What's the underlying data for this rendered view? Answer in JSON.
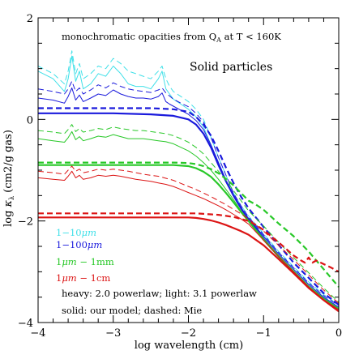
{
  "chart_data": {
    "type": "line",
    "title": "monochromatic opacities from Q_A at T < 160K",
    "subtitle": "Solid particles",
    "xlabel": "log wavelength (cm)",
    "ylabel": "log κ_λ (cm2/g gas)",
    "xlim": [
      -4,
      0
    ],
    "ylim": [
      -4,
      2
    ],
    "x_ticks": [
      -4,
      -3,
      -2,
      -1,
      0
    ],
    "x_tick_labels": [
      "−4",
      "−3",
      "−2",
      "−1",
      "0"
    ],
    "y_ticks": [
      -4,
      -2,
      0,
      2
    ],
    "y_tick_labels": [
      "−4",
      "−2",
      "0",
      "2"
    ],
    "grid": false,
    "annotations": {
      "title_main": "monochromatic opacities from Q",
      "title_sub": "A",
      "title_tail": " at T < 160K",
      "panel_label": "Solid particles",
      "note_powerlaw": "heavy: 2.0 powerlaw; light: 3.1 powerlaw",
      "note_model": "solid: our model; dashed: Mie"
    },
    "legend": [
      {
        "label_pre": "1−10",
        "label_unit": "μm",
        "label_post": "",
        "color": "#40e0e8"
      },
      {
        "label_pre": "1−100",
        "label_unit": "μm",
        "label_post": "",
        "color": "#1a1adc"
      },
      {
        "label_pre": "1",
        "label_unit": "μm",
        "label_post": " − 1mm",
        "color": "#28c828"
      },
      {
        "label_pre": "1",
        "label_unit": "μm",
        "label_post": " − 1cm",
        "color": "#dc1414"
      }
    ],
    "series": [
      {
        "color": "#40e0e8",
        "width": 1.0,
        "dash": false,
        "x": [
          -4.0,
          -3.8,
          -3.65,
          -3.6,
          -3.55,
          -3.5,
          -3.45,
          -3.4,
          -3.3,
          -3.2,
          -3.1,
          -3.0,
          -2.9,
          -2.8,
          -2.7,
          -2.6,
          -2.5,
          -2.4,
          -2.35,
          -2.3,
          -2.25,
          -2.2,
          -2.1,
          -2.0,
          -1.9,
          -1.8,
          -1.7,
          -1.6,
          -1.5,
          -1.4,
          -1.3,
          -1.2,
          -1.0,
          -0.8,
          -0.6,
          -0.4,
          -0.2,
          0.0
        ],
        "y": [
          0.95,
          0.8,
          0.55,
          0.8,
          1.25,
          0.75,
          0.95,
          0.6,
          0.7,
          0.9,
          0.85,
          1.05,
          0.9,
          0.7,
          0.65,
          0.65,
          0.6,
          0.8,
          0.95,
          0.6,
          0.5,
          0.4,
          0.3,
          0.2,
          0.05,
          -0.15,
          -0.5,
          -0.85,
          -1.2,
          -1.5,
          -1.75,
          -1.95,
          -2.3,
          -2.65,
          -2.95,
          -3.25,
          -3.5,
          -3.7
        ]
      },
      {
        "color": "#40e0e8",
        "width": 1.0,
        "dash": true,
        "x": [
          -4.0,
          -3.8,
          -3.65,
          -3.6,
          -3.55,
          -3.5,
          -3.45,
          -3.4,
          -3.3,
          -3.2,
          -3.1,
          -3.0,
          -2.9,
          -2.8,
          -2.7,
          -2.6,
          -2.5,
          -2.4,
          -2.35,
          -2.3,
          -2.25,
          -2.2,
          -2.1,
          -2.0,
          -1.9,
          -1.8,
          -1.7,
          -1.6,
          -1.5,
          -1.4,
          -1.3,
          -1.2,
          -1.0,
          -0.8,
          -0.6,
          -0.4,
          -0.2,
          0.0
        ],
        "y": [
          1.05,
          0.9,
          0.7,
          0.95,
          1.35,
          0.9,
          1.1,
          0.8,
          0.9,
          1.05,
          1.0,
          1.2,
          1.1,
          0.95,
          0.9,
          0.85,
          0.8,
          0.95,
          1.05,
          0.8,
          0.65,
          0.55,
          0.45,
          0.35,
          0.2,
          0.0,
          -0.35,
          -0.75,
          -1.1,
          -1.45,
          -1.7,
          -1.9,
          -2.25,
          -2.6,
          -2.9,
          -3.2,
          -3.45,
          -3.65
        ]
      },
      {
        "color": "#1a1adc",
        "width": 1.0,
        "dash": false,
        "x": [
          -4.0,
          -3.8,
          -3.65,
          -3.6,
          -3.55,
          -3.5,
          -3.45,
          -3.4,
          -3.3,
          -3.2,
          -3.1,
          -3.0,
          -2.9,
          -2.8,
          -2.7,
          -2.6,
          -2.5,
          -2.4,
          -2.35,
          -2.3,
          -2.25,
          -2.2,
          -2.1,
          -2.0,
          -1.9,
          -1.8,
          -1.7,
          -1.6,
          -1.5,
          -1.4,
          -1.3,
          -1.2,
          -1.0,
          -0.8,
          -0.6,
          -0.4,
          -0.2,
          0.0
        ],
        "y": [
          0.42,
          0.38,
          0.32,
          0.45,
          0.62,
          0.38,
          0.48,
          0.35,
          0.42,
          0.5,
          0.47,
          0.58,
          0.5,
          0.45,
          0.42,
          0.42,
          0.4,
          0.45,
          0.52,
          0.35,
          0.3,
          0.26,
          0.18,
          0.1,
          -0.02,
          -0.2,
          -0.5,
          -0.85,
          -1.2,
          -1.5,
          -1.75,
          -1.95,
          -2.3,
          -2.65,
          -2.95,
          -3.25,
          -3.5,
          -3.7
        ]
      },
      {
        "color": "#1a1adc",
        "width": 1.0,
        "dash": true,
        "x": [
          -4.0,
          -3.8,
          -3.65,
          -3.6,
          -3.55,
          -3.5,
          -3.45,
          -3.4,
          -3.3,
          -3.2,
          -3.1,
          -3.0,
          -2.9,
          -2.8,
          -2.7,
          -2.6,
          -2.5,
          -2.4,
          -2.35,
          -2.3,
          -2.25,
          -2.2,
          -2.1,
          -2.0,
          -1.9,
          -1.8,
          -1.7,
          -1.6,
          -1.5,
          -1.4,
          -1.3,
          -1.2,
          -1.0,
          -0.8,
          -0.6,
          -0.4,
          -0.2,
          0.0
        ],
        "y": [
          0.6,
          0.55,
          0.5,
          0.6,
          0.75,
          0.55,
          0.62,
          0.5,
          0.58,
          0.68,
          0.62,
          0.72,
          0.65,
          0.6,
          0.57,
          0.55,
          0.53,
          0.58,
          0.62,
          0.52,
          0.46,
          0.4,
          0.32,
          0.25,
          0.12,
          -0.05,
          -0.35,
          -0.75,
          -1.1,
          -1.45,
          -1.7,
          -1.92,
          -2.27,
          -2.62,
          -2.92,
          -3.22,
          -3.47,
          -3.67
        ]
      },
      {
        "color": "#1a1adc",
        "width": 2.2,
        "dash": false,
        "x": [
          -4.0,
          -3.5,
          -3.0,
          -2.5,
          -2.2,
          -2.0,
          -1.9,
          -1.8,
          -1.7,
          -1.6,
          -1.5,
          -1.4,
          -1.3,
          -1.2,
          -1.0,
          -0.8,
          -0.6,
          -0.4,
          -0.2,
          0.0
        ],
        "y": [
          0.12,
          0.12,
          0.12,
          0.1,
          0.07,
          0.0,
          -0.1,
          -0.28,
          -0.55,
          -0.9,
          -1.22,
          -1.5,
          -1.75,
          -1.97,
          -2.35,
          -2.7,
          -3.0,
          -3.3,
          -3.55,
          -3.75
        ]
      },
      {
        "color": "#1a1adc",
        "width": 2.2,
        "dash": true,
        "x": [
          -4.0,
          -3.5,
          -3.0,
          -2.5,
          -2.2,
          -2.0,
          -1.9,
          -1.8,
          -1.7,
          -1.6,
          -1.5,
          -1.4,
          -1.3,
          -1.2,
          -1.0,
          -0.8,
          -0.6,
          -0.4,
          -0.2,
          0.0
        ],
        "y": [
          0.22,
          0.22,
          0.22,
          0.22,
          0.2,
          0.15,
          0.05,
          -0.1,
          -0.32,
          -0.62,
          -0.95,
          -1.25,
          -1.52,
          -1.75,
          -2.12,
          -2.47,
          -2.82,
          -3.12,
          -3.42,
          -3.65
        ]
      },
      {
        "color": "#28c828",
        "width": 1.0,
        "dash": false,
        "x": [
          -4.0,
          -3.8,
          -3.65,
          -3.6,
          -3.55,
          -3.5,
          -3.45,
          -3.4,
          -3.3,
          -3.2,
          -3.1,
          -3.0,
          -2.9,
          -2.8,
          -2.7,
          -2.6,
          -2.5,
          -2.4,
          -2.3,
          -2.2,
          -2.1,
          -2.0,
          -1.9,
          -1.8,
          -1.7,
          -1.6,
          -1.5,
          -1.4,
          -1.3,
          -1.2,
          -1.0,
          -0.8,
          -0.6,
          -0.4,
          -0.2,
          0.0
        ],
        "y": [
          -0.38,
          -0.42,
          -0.45,
          -0.36,
          -0.24,
          -0.4,
          -0.34,
          -0.42,
          -0.38,
          -0.33,
          -0.35,
          -0.3,
          -0.34,
          -0.38,
          -0.38,
          -0.38,
          -0.4,
          -0.42,
          -0.44,
          -0.48,
          -0.55,
          -0.62,
          -0.72,
          -0.85,
          -1.0,
          -1.18,
          -1.38,
          -1.58,
          -1.8,
          -2.0,
          -2.35,
          -2.68,
          -2.98,
          -3.28,
          -3.52,
          -3.72
        ]
      },
      {
        "color": "#28c828",
        "width": 1.0,
        "dash": true,
        "x": [
          -4.0,
          -3.8,
          -3.65,
          -3.6,
          -3.55,
          -3.5,
          -3.45,
          -3.4,
          -3.3,
          -3.2,
          -3.1,
          -3.0,
          -2.9,
          -2.8,
          -2.7,
          -2.6,
          -2.5,
          -2.4,
          -2.3,
          -2.2,
          -2.1,
          -2.0,
          -1.9,
          -1.8,
          -1.7,
          -1.6,
          -1.5,
          -1.4,
          -1.3,
          -1.2,
          -1.0,
          -0.8,
          -0.6,
          -0.4,
          -0.2,
          0.0
        ],
        "y": [
          -0.22,
          -0.25,
          -0.28,
          -0.2,
          -0.1,
          -0.24,
          -0.18,
          -0.25,
          -0.22,
          -0.18,
          -0.2,
          -0.15,
          -0.18,
          -0.2,
          -0.22,
          -0.22,
          -0.24,
          -0.26,
          -0.28,
          -0.32,
          -0.38,
          -0.45,
          -0.55,
          -0.68,
          -0.85,
          -1.02,
          -1.2,
          -1.4,
          -1.6,
          -1.8,
          -2.1,
          -2.42,
          -2.72,
          -3.02,
          -3.32,
          -3.6
        ]
      },
      {
        "color": "#28c828",
        "width": 2.2,
        "dash": false,
        "x": [
          -4.0,
          -3.5,
          -3.0,
          -2.5,
          -2.2,
          -2.0,
          -1.9,
          -1.8,
          -1.7,
          -1.6,
          -1.5,
          -1.4,
          -1.3,
          -1.2,
          -1.0,
          -0.8,
          -0.6,
          -0.4,
          -0.2,
          0.0
        ],
        "y": [
          -0.9,
          -0.9,
          -0.9,
          -0.9,
          -0.9,
          -0.92,
          -0.96,
          -1.03,
          -1.13,
          -1.28,
          -1.45,
          -1.63,
          -1.82,
          -2.0,
          -2.37,
          -2.7,
          -3.0,
          -3.3,
          -3.55,
          -3.75
        ]
      },
      {
        "color": "#28c828",
        "width": 2.2,
        "dash": true,
        "x": [
          -4.0,
          -3.5,
          -3.0,
          -2.5,
          -2.2,
          -2.0,
          -1.9,
          -1.8,
          -1.7,
          -1.6,
          -1.5,
          -1.4,
          -1.3,
          -1.2,
          -1.1,
          -1.0,
          -0.8,
          -0.6,
          -0.4,
          -0.2,
          0.0
        ],
        "y": [
          -0.85,
          -0.85,
          -0.85,
          -0.85,
          -0.85,
          -0.86,
          -0.88,
          -0.92,
          -0.98,
          -1.06,
          -1.17,
          -1.3,
          -1.45,
          -1.6,
          -1.68,
          -1.78,
          -2.05,
          -2.3,
          -2.6,
          -2.95,
          -3.3
        ]
      },
      {
        "color": "#dc1414",
        "width": 1.0,
        "dash": false,
        "x": [
          -4.0,
          -3.8,
          -3.65,
          -3.6,
          -3.55,
          -3.5,
          -3.45,
          -3.4,
          -3.3,
          -3.2,
          -3.1,
          -3.0,
          -2.9,
          -2.8,
          -2.7,
          -2.6,
          -2.5,
          -2.4,
          -2.3,
          -2.2,
          -2.1,
          -2.0,
          -1.9,
          -1.8,
          -1.7,
          -1.6,
          -1.5,
          -1.4,
          -1.3,
          -1.2,
          -1.0,
          -0.8,
          -0.6,
          -0.4,
          -0.2,
          0.0
        ],
        "y": [
          -1.15,
          -1.18,
          -1.2,
          -1.12,
          -1.02,
          -1.15,
          -1.1,
          -1.18,
          -1.15,
          -1.1,
          -1.12,
          -1.1,
          -1.12,
          -1.15,
          -1.18,
          -1.2,
          -1.22,
          -1.25,
          -1.28,
          -1.32,
          -1.38,
          -1.44,
          -1.5,
          -1.56,
          -1.63,
          -1.7,
          -1.78,
          -1.87,
          -1.96,
          -2.06,
          -2.38,
          -2.7,
          -3.0,
          -3.3,
          -3.55,
          -3.75
        ]
      },
      {
        "color": "#dc1414",
        "width": 1.0,
        "dash": true,
        "x": [
          -4.0,
          -3.8,
          -3.65,
          -3.6,
          -3.55,
          -3.5,
          -3.45,
          -3.4,
          -3.3,
          -3.2,
          -3.1,
          -3.0,
          -2.9,
          -2.8,
          -2.7,
          -2.6,
          -2.5,
          -2.4,
          -2.3,
          -2.2,
          -2.1,
          -2.0,
          -1.9,
          -1.8,
          -1.7,
          -1.6,
          -1.5,
          -1.4,
          -1.3,
          -1.2,
          -1.0,
          -0.8,
          -0.6,
          -0.4,
          -0.2,
          0.0
        ],
        "y": [
          -1.02,
          -1.05,
          -1.08,
          -1.0,
          -0.92,
          -1.02,
          -0.98,
          -1.05,
          -1.02,
          -0.98,
          -1.0,
          -0.98,
          -1.0,
          -1.02,
          -1.05,
          -1.08,
          -1.1,
          -1.12,
          -1.16,
          -1.2,
          -1.26,
          -1.32,
          -1.38,
          -1.45,
          -1.52,
          -1.6,
          -1.68,
          -1.77,
          -1.86,
          -1.96,
          -2.2,
          -2.48,
          -2.76,
          -3.06,
          -3.36,
          -3.62
        ]
      },
      {
        "color": "#dc1414",
        "width": 2.2,
        "dash": false,
        "x": [
          -4.0,
          -3.5,
          -3.0,
          -2.5,
          -2.2,
          -2.0,
          -1.9,
          -1.8,
          -1.7,
          -1.6,
          -1.5,
          -1.4,
          -1.3,
          -1.2,
          -1.0,
          -0.8,
          -0.6,
          -0.4,
          -0.2,
          0.0
        ],
        "y": [
          -1.93,
          -1.93,
          -1.93,
          -1.93,
          -1.93,
          -1.93,
          -1.94,
          -1.96,
          -1.99,
          -2.03,
          -2.08,
          -2.14,
          -2.2,
          -2.27,
          -2.48,
          -2.75,
          -3.03,
          -3.32,
          -3.56,
          -3.78
        ]
      },
      {
        "color": "#dc1414",
        "width": 2.2,
        "dash": true,
        "x": [
          -4.0,
          -3.5,
          -3.0,
          -2.5,
          -2.2,
          -2.0,
          -1.9,
          -1.8,
          -1.7,
          -1.6,
          -1.5,
          -1.4,
          -1.3,
          -1.2,
          -1.1,
          -1.0,
          -0.9,
          -0.8,
          -0.7,
          -0.6,
          -0.5,
          -0.45,
          -0.4,
          -0.35,
          -0.3,
          -0.2,
          -0.1,
          0.0
        ],
        "y": [
          -1.85,
          -1.85,
          -1.85,
          -1.85,
          -1.85,
          -1.85,
          -1.85,
          -1.86,
          -1.87,
          -1.88,
          -1.9,
          -1.92,
          -1.96,
          -2.0,
          -2.08,
          -2.18,
          -2.3,
          -2.42,
          -2.55,
          -2.68,
          -2.78,
          -2.82,
          -2.72,
          -2.82,
          -2.78,
          -2.85,
          -2.92,
          -3.0
        ]
      }
    ]
  }
}
